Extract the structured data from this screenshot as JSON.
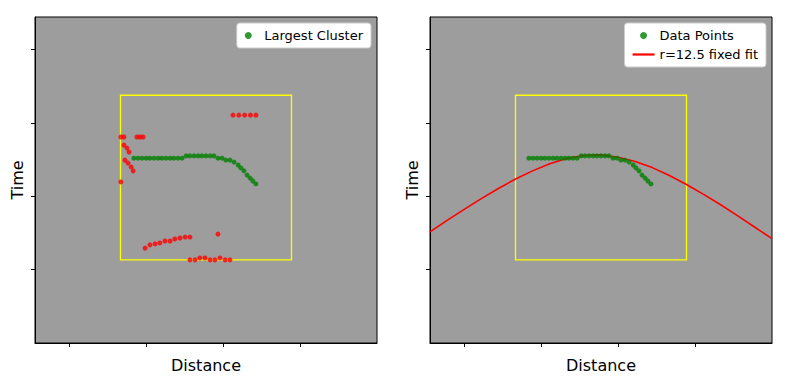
{
  "chart_data": [
    {
      "type": "scatter",
      "x_label": "Distance",
      "y_label": "Time",
      "xlim": [
        0,
        100
      ],
      "ylim": [
        0,
        100
      ],
      "xticks": [
        10,
        32.5,
        55,
        77.5
      ],
      "yticks": [
        10,
        32.5,
        55,
        77.5
      ],
      "tick_labels": false,
      "grid": false,
      "legend": "upper right",
      "box": {
        "x": [
          25,
          75
        ],
        "y": [
          24,
          74.5
        ],
        "color": "#ffff00"
      },
      "series": [
        {
          "name": "Largest Cluster",
          "color": "#008000",
          "type": "scatter",
          "marker": "o",
          "x": [
            28.9,
            30.1,
            31.3,
            32.5,
            33.6,
            34.8,
            36.0,
            37.1,
            38.3,
            39.5,
            40.6,
            41.8,
            43.0,
            44.2,
            45.3,
            46.5,
            47.7,
            48.8,
            50.0,
            51.2,
            52.3,
            53.5,
            54.7,
            55.8,
            57.0,
            58.2,
            59.4,
            60.2,
            61.1,
            62.0,
            62.9,
            63.7,
            64.6
          ],
          "values": [
            43.3,
            43.3,
            43.3,
            43.3,
            43.3,
            43.3,
            43.3,
            43.3,
            43.3,
            43.3,
            43.3,
            43.3,
            43.3,
            42.6,
            42.6,
            42.6,
            42.6,
            42.6,
            42.6,
            42.6,
            42.6,
            43.3,
            43.3,
            43.9,
            43.9,
            44.5,
            45.4,
            46.3,
            47.2,
            48.5,
            49.4,
            50.3,
            51.2
          ]
        },
        {
          "color": "#ff0000",
          "type": "scatter",
          "marker": "o",
          "x": [
            25.1,
            26.0,
            26.0,
            26.9,
            27.5,
            26.3,
            27.2,
            28.1,
            28.7,
            25.1,
            29.8,
            30.7,
            31.6,
            57.9,
            59.6,
            61.3,
            63.0,
            64.6,
            32.2,
            33.6,
            35.1,
            36.5,
            38.0,
            39.5,
            40.9,
            42.4,
            43.9,
            45.3,
            53.5,
            45.3,
            46.8,
            48.2,
            49.7,
            51.2,
            52.6,
            54.1,
            55.6,
            57.0
          ],
          "values": [
            36.8,
            36.8,
            39.3,
            40.2,
            41.4,
            43.9,
            44.8,
            46.0,
            47.2,
            50.6,
            36.8,
            36.8,
            36.8,
            30.1,
            30.1,
            30.1,
            30.1,
            30.1,
            70.9,
            69.9,
            69.6,
            69.3,
            68.7,
            68.7,
            68.1,
            67.8,
            67.5,
            67.5,
            66.6,
            74.5,
            74.5,
            73.9,
            73.9,
            74.5,
            74.5,
            73.9,
            74.5,
            74.5
          ]
        }
      ]
    },
    {
      "type": "scatter",
      "x_label": "Distance",
      "y_label": "Time",
      "xlim": [
        0,
        100
      ],
      "ylim": [
        0,
        100
      ],
      "xticks": [
        10,
        32.5,
        55,
        77.5
      ],
      "yticks": [
        10,
        32.5,
        55,
        77.5
      ],
      "tick_labels": false,
      "grid": false,
      "legend": "upper right",
      "box": {
        "x": [
          25,
          75
        ],
        "y": [
          24,
          74.5
        ],
        "color": "#ffff00"
      },
      "series": [
        {
          "name": "Data Points",
          "color": "#008000",
          "type": "scatter",
          "marker": "o",
          "x": [
            28.9,
            30.1,
            31.3,
            32.5,
            33.6,
            34.8,
            36.0,
            37.1,
            38.3,
            39.5,
            40.6,
            41.8,
            43.0,
            44.2,
            45.3,
            46.5,
            47.7,
            48.8,
            50.0,
            51.2,
            52.3,
            53.5,
            54.7,
            55.8,
            57.0,
            58.2,
            59.4,
            60.2,
            61.1,
            62.0,
            62.9,
            63.7,
            64.6
          ],
          "values": [
            43.3,
            43.3,
            43.3,
            43.3,
            43.3,
            43.3,
            43.3,
            43.3,
            43.3,
            43.3,
            43.3,
            43.3,
            43.3,
            42.6,
            42.6,
            42.6,
            42.6,
            42.6,
            42.6,
            42.6,
            42.6,
            43.3,
            43.3,
            43.9,
            43.9,
            44.5,
            45.4,
            46.3,
            47.2,
            48.5,
            49.4,
            50.3,
            51.2
          ]
        },
        {
          "name": "r=12.5 fixed fit",
          "color": "#ff0000",
          "type": "line",
          "line_style": "solid",
          "x": [
            0,
            5,
            10,
            15,
            20,
            25,
            30,
            35,
            40,
            45,
            50,
            55,
            60,
            65,
            70,
            75,
            80,
            85,
            90,
            95,
            100
          ],
          "values": [
            65.9,
            62.4,
            59.0,
            55.7,
            52.6,
            49.7,
            47.2,
            45.0,
            43.4,
            42.5,
            42.3,
            43.0,
            44.3,
            46.2,
            48.6,
            51.4,
            54.4,
            57.6,
            61.0,
            64.5,
            68.0
          ]
        }
      ]
    }
  ]
}
